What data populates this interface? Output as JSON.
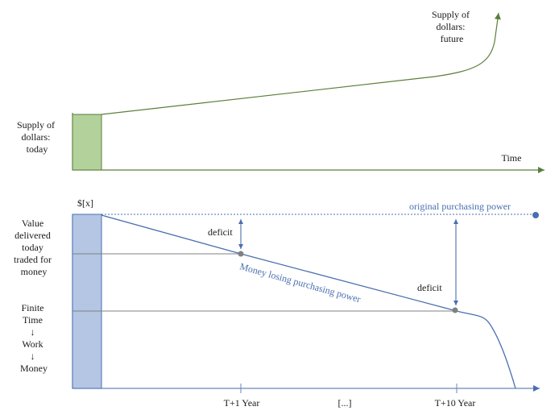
{
  "top": {
    "label_today": [
      "Supply of",
      "dollars:",
      "today"
    ],
    "label_future": [
      "Supply of",
      "dollars:",
      "future"
    ],
    "x_axis_label": "Time",
    "colors": {
      "line": "#5a7f3c",
      "bar_fill": "#b3d19a",
      "bar_stroke": "#5a7f3c"
    }
  },
  "bottom": {
    "value_label": "$[x]",
    "left_label_1": [
      "Value",
      "delivered",
      "today",
      "traded for",
      "money"
    ],
    "left_label_2": [
      "Finite",
      "Time",
      "↓",
      "Work",
      "↓",
      "Money"
    ],
    "original_pp_label": "original purchasing power",
    "decline_label": "Money losing purchasing power",
    "deficit_label_1": "deficit",
    "deficit_label_2": "deficit",
    "x_ticks": [
      "T+1 Year",
      "[...]",
      "T+10 Year"
    ],
    "colors": {
      "line": "#4a6fb0",
      "bar_fill": "#b4c6e4",
      "bar_stroke": "#4a6fb0",
      "axis": "#6b86bf",
      "dot": "#808080"
    }
  }
}
